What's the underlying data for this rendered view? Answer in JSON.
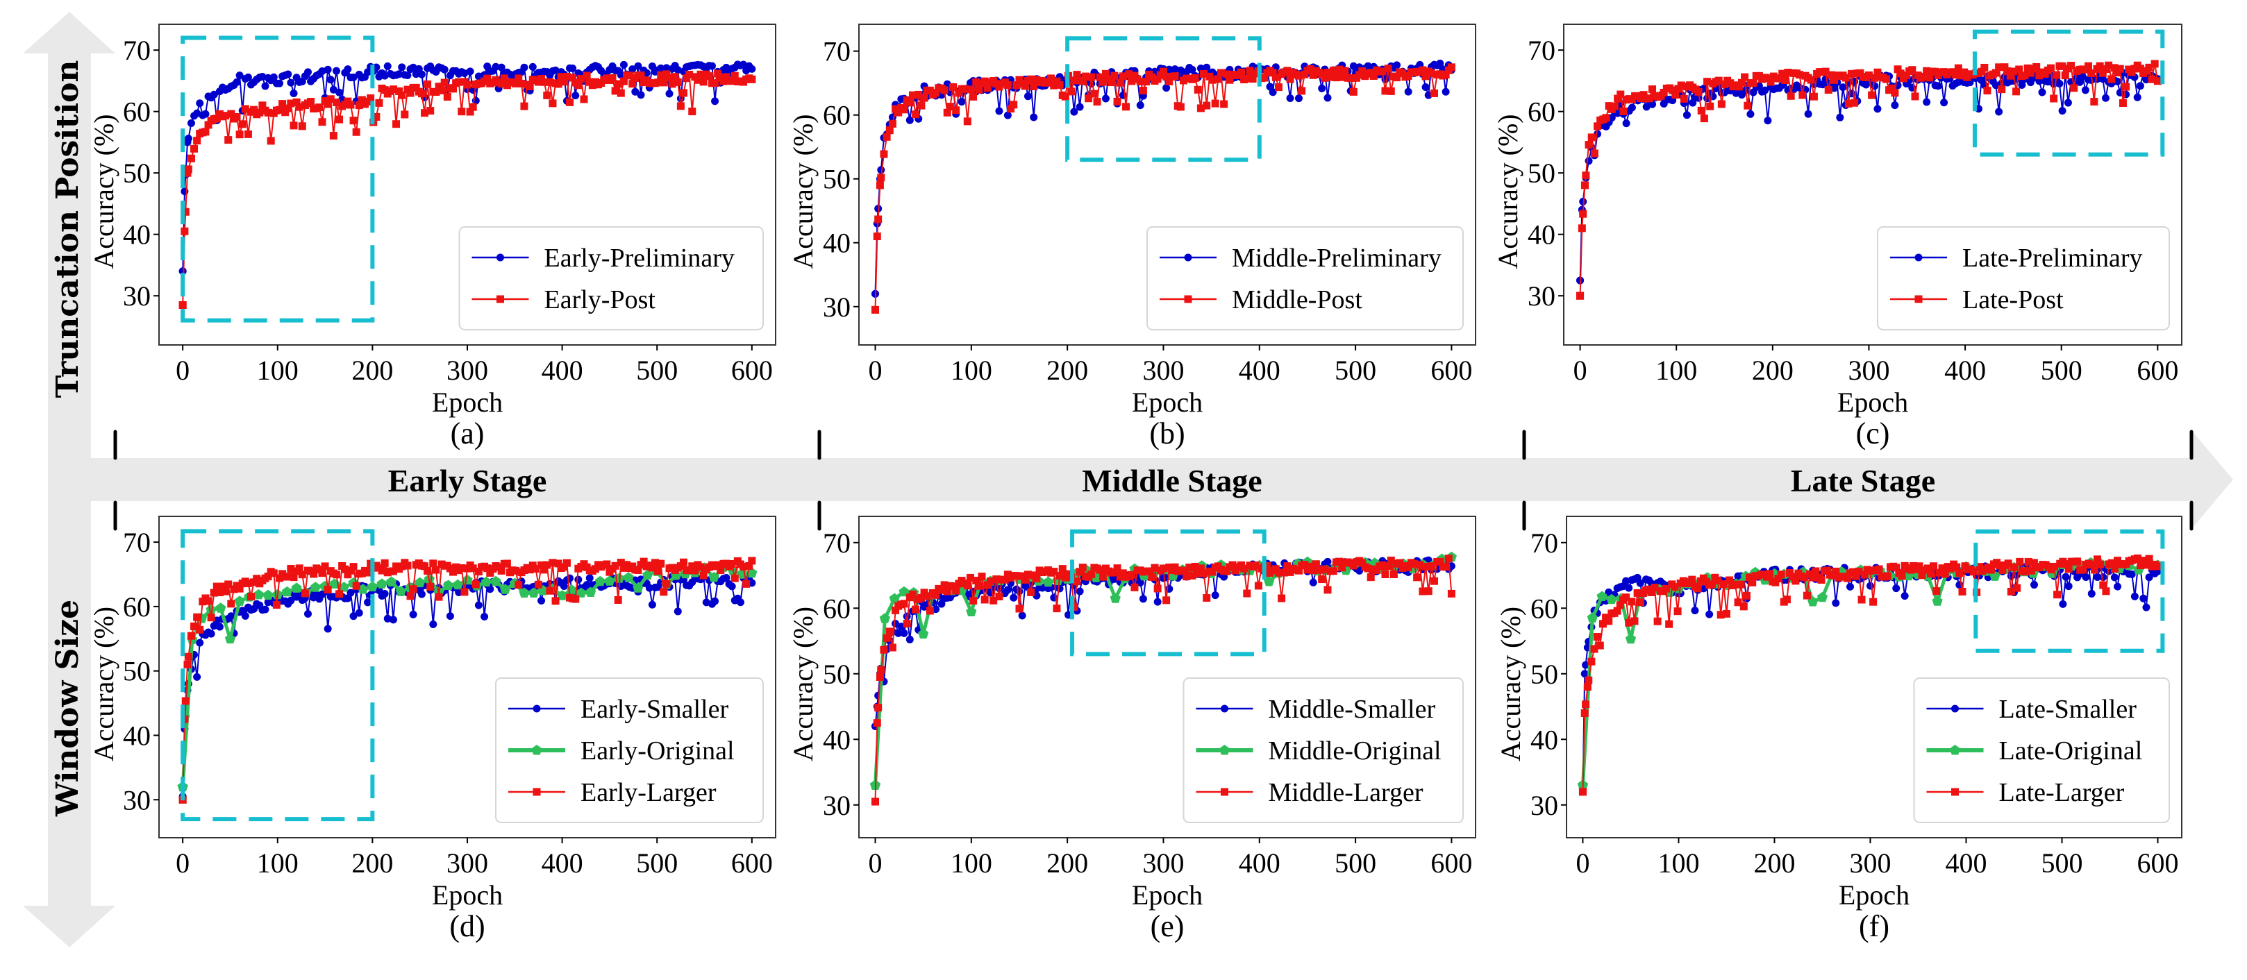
{
  "figure": {
    "row_axis_labels": {
      "top": "Truncation Position",
      "bottom": "Window Size"
    },
    "stage_labels": [
      "Early Stage",
      "Middle Stage",
      "Late Stage"
    ],
    "colors": {
      "arrow": "#e9e9e9",
      "highlight_box": "#17becf",
      "blue": "#0000cc",
      "red": "#ee1111",
      "green": "#2fbf5a",
      "frame": "#333333"
    }
  },
  "chart_data": [
    {
      "id": "a",
      "type": "line",
      "panel_label": "(a)",
      "xlabel": "Epoch",
      "ylabel": "Accuracy (%)",
      "xlim": [
        -25,
        625
      ],
      "ylim": [
        22,
        74.2
      ],
      "xticks": [
        0,
        100,
        200,
        300,
        400,
        500,
        600
      ],
      "yticks": [
        30,
        40,
        50,
        60,
        70
      ],
      "highlight_box": {
        "x": [
          0,
          200
        ],
        "y": [
          26,
          72
        ]
      },
      "legend": "lower-right",
      "series": [
        {
          "name": "Early-Preliminary",
          "color": "blue",
          "marker": "circle",
          "profile": "prelim_early",
          "keypoints": [
            [
              0,
              34
            ],
            [
              2,
              47
            ],
            [
              5,
              55
            ],
            [
              10,
              58
            ],
            [
              20,
              61.5
            ],
            [
              40,
              64
            ],
            [
              60,
              65
            ],
            [
              100,
              65
            ],
            [
              150,
              66
            ],
            [
              200,
              66.5
            ],
            [
              300,
              66.5
            ],
            [
              400,
              66.5
            ],
            [
              600,
              67.2
            ]
          ]
        },
        {
          "name": "Early-Post",
          "color": "red",
          "marker": "square",
          "profile": "post_early",
          "keypoints": [
            [
              0,
              28.5
            ],
            [
              2,
              40.5
            ],
            [
              5,
              50
            ],
            [
              10,
              53
            ],
            [
              20,
              56.5
            ],
            [
              40,
              59
            ],
            [
              60,
              59.8
            ],
            [
              100,
              60.5
            ],
            [
              150,
              61.2
            ],
            [
              199,
              62
            ],
            [
              200,
              57
            ],
            [
              210,
              63
            ],
            [
              300,
              64.5
            ],
            [
              400,
              65
            ],
            [
              600,
              65.5
            ]
          ]
        }
      ]
    },
    {
      "id": "b",
      "type": "line",
      "panel_label": "(b)",
      "xlabel": "Epoch",
      "ylabel": "Accuracy (%)",
      "xlim": [
        -17,
        625
      ],
      "ylim": [
        24,
        74.2
      ],
      "xticks": [
        0,
        100,
        200,
        300,
        400,
        500,
        600
      ],
      "yticks": [
        30,
        40,
        50,
        60,
        70
      ],
      "highlight_box": {
        "x": [
          200,
          400
        ],
        "y": [
          53,
          72
        ]
      },
      "legend": "lower-right",
      "series": [
        {
          "name": "Middle-Preliminary",
          "color": "blue",
          "marker": "circle",
          "profile": "prelim_mid",
          "keypoints": [
            [
              0,
              32
            ],
            [
              2,
              43
            ],
            [
              5,
              50
            ],
            [
              10,
              57
            ],
            [
              20,
              61
            ],
            [
              40,
              63.5
            ],
            [
              100,
              64.5
            ],
            [
              200,
              65.5
            ],
            [
              300,
              66.5
            ],
            [
              400,
              66.7
            ],
            [
              600,
              67.3
            ]
          ]
        },
        {
          "name": "Middle-Post",
          "color": "red",
          "marker": "square",
          "profile": "post_mid",
          "keypoints": [
            [
              0,
              29.5
            ],
            [
              2,
              41
            ],
            [
              5,
              49
            ],
            [
              10,
              55
            ],
            [
              20,
              60
            ],
            [
              40,
              63
            ],
            [
              100,
              64.5
            ],
            [
              200,
              65.5
            ],
            [
              300,
              66
            ],
            [
              400,
              66.3
            ],
            [
              600,
              66.8
            ]
          ]
        }
      ]
    },
    {
      "id": "c",
      "type": "line",
      "panel_label": "(c)",
      "xlabel": "Epoch",
      "ylabel": "Accuracy (%)",
      "xlim": [
        -17,
        625
      ],
      "ylim": [
        22,
        74.2
      ],
      "xticks": [
        0,
        100,
        200,
        300,
        400,
        500,
        600
      ],
      "yticks": [
        30,
        40,
        50,
        60,
        70
      ],
      "highlight_box": {
        "x": [
          410,
          605
        ],
        "y": [
          53,
          73
        ]
      },
      "legend": "lower-right",
      "series": [
        {
          "name": "Late-Preliminary",
          "color": "blue",
          "marker": "circle",
          "profile": "prelim_late",
          "keypoints": [
            [
              0,
              32.5
            ],
            [
              2,
              44
            ],
            [
              5,
              48
            ],
            [
              10,
              54
            ],
            [
              20,
              57
            ],
            [
              40,
              60.5
            ],
            [
              100,
              62.5
            ],
            [
              200,
              64
            ],
            [
              300,
              65
            ],
            [
              400,
              65
            ],
            [
              600,
              65.5
            ]
          ]
        },
        {
          "name": "Late-Post",
          "color": "red",
          "marker": "square",
          "profile": "post_late",
          "keypoints": [
            [
              0,
              30
            ],
            [
              2,
              41
            ],
            [
              5,
              48
            ],
            [
              10,
              56
            ],
            [
              20,
              58.5
            ],
            [
              40,
              62
            ],
            [
              100,
              63.5
            ],
            [
              200,
              65.5
            ],
            [
              300,
              66
            ],
            [
              400,
              66.3
            ],
            [
              600,
              67
            ]
          ]
        }
      ]
    },
    {
      "id": "d",
      "type": "line",
      "panel_label": "(d)",
      "xlabel": "Epoch",
      "ylabel": "Accuracy (%)",
      "xlim": [
        -25,
        625
      ],
      "ylim": [
        24.1,
        74
      ],
      "xticks": [
        0,
        100,
        200,
        300,
        400,
        500,
        600
      ],
      "yticks": [
        30,
        40,
        50,
        60,
        70
      ],
      "highlight_box": {
        "x": [
          0,
          200
        ],
        "y": [
          27,
          71.7
        ]
      },
      "legend": "lower-right",
      "series": [
        {
          "name": "Early-Smaller",
          "color": "blue",
          "marker": "circle",
          "profile": "small",
          "keypoints": [
            [
              0,
              30.5
            ],
            [
              2,
              41
            ],
            [
              5,
              47
            ],
            [
              10,
              52
            ],
            [
              20,
              55
            ],
            [
              40,
              57.5
            ],
            [
              60,
              59
            ],
            [
              100,
              61
            ],
            [
              200,
              62.5
            ],
            [
              300,
              63
            ],
            [
              400,
              63.5
            ],
            [
              600,
              64
            ]
          ]
        },
        {
          "name": "Early-Original",
          "color": "green",
          "marker": "pentagon",
          "profile": "orig",
          "keypoints": [
            [
              0,
              32
            ],
            [
              10,
              57
            ],
            [
              20,
              60
            ],
            [
              40,
              60.5
            ],
            [
              50,
              55
            ],
            [
              60,
              61.5
            ],
            [
              100,
              62.5
            ],
            [
              200,
              63.5
            ],
            [
              300,
              64
            ],
            [
              400,
              62
            ],
            [
              500,
              65
            ],
            [
              600,
              65.5
            ]
          ]
        },
        {
          "name": "Early-Larger",
          "color": "red",
          "marker": "square",
          "profile": "large",
          "keypoints": [
            [
              0,
              30
            ],
            [
              2,
              42.5
            ],
            [
              5,
              51
            ],
            [
              10,
              57
            ],
            [
              20,
              60
            ],
            [
              40,
              63
            ],
            [
              60,
              63.5
            ],
            [
              100,
              65
            ],
            [
              200,
              66
            ],
            [
              300,
              66
            ],
            [
              400,
              66
            ],
            [
              600,
              66.5
            ]
          ]
        }
      ]
    },
    {
      "id": "e",
      "type": "line",
      "panel_label": "(e)",
      "xlabel": "Epoch",
      "ylabel": "Accuracy (%)",
      "xlim": [
        -17,
        625
      ],
      "ylim": [
        25,
        74
      ],
      "xticks": [
        0,
        100,
        200,
        300,
        400,
        500,
        600
      ],
      "yticks": [
        30,
        40,
        50,
        60,
        70
      ],
      "highlight_box": {
        "x": [
          205,
          405
        ],
        "y": [
          53,
          71.7
        ]
      },
      "legend": "lower-right",
      "series": [
        {
          "name": "Middle-Smaller",
          "color": "blue",
          "marker": "circle",
          "profile": "small",
          "keypoints": [
            [
              0,
              42
            ],
            [
              2,
              45
            ],
            [
              5,
              50
            ],
            [
              10,
              54
            ],
            [
              20,
              57
            ],
            [
              40,
              60
            ],
            [
              100,
              62.5
            ],
            [
              200,
              64
            ],
            [
              300,
              65
            ],
            [
              400,
              66
            ],
            [
              600,
              66.5
            ]
          ]
        },
        {
          "name": "Middle-Original",
          "color": "green",
          "marker": "pentagon",
          "profile": "orig",
          "keypoints": [
            [
              0,
              33
            ],
            [
              10,
              58
            ],
            [
              20,
              61.5
            ],
            [
              40,
              62.5
            ],
            [
              50,
              56
            ],
            [
              60,
              62
            ],
            [
              100,
              63.5
            ],
            [
              200,
              65
            ],
            [
              300,
              65.5
            ],
            [
              400,
              66
            ],
            [
              600,
              67
            ]
          ]
        },
        {
          "name": "Middle-Larger",
          "color": "red",
          "marker": "square",
          "profile": "large",
          "keypoints": [
            [
              0,
              30.5
            ],
            [
              2,
              42.5
            ],
            [
              5,
              49.5
            ],
            [
              10,
              55
            ],
            [
              20,
              59
            ],
            [
              40,
              62
            ],
            [
              100,
              64
            ],
            [
              200,
              65.5
            ],
            [
              300,
              65.5
            ],
            [
              400,
              66
            ],
            [
              600,
              66.8
            ]
          ]
        }
      ]
    },
    {
      "id": "f",
      "type": "line",
      "panel_label": "(f)",
      "xlabel": "Epoch",
      "ylabel": "Accuracy (%)",
      "xlim": [
        -17,
        625
      ],
      "ylim": [
        25,
        74
      ],
      "xticks": [
        0,
        100,
        200,
        300,
        400,
        500,
        600
      ],
      "yticks": [
        30,
        40,
        50,
        60,
        70
      ],
      "highlight_box": {
        "x": [
          410,
          605
        ],
        "y": [
          53.5,
          71.7
        ]
      },
      "legend": "lower-right",
      "series": [
        {
          "name": "Late-Smaller",
          "color": "blue",
          "marker": "circle",
          "profile": "small",
          "keypoints": [
            [
              0,
              32.5
            ],
            [
              2,
              50
            ],
            [
              5,
              54
            ],
            [
              10,
              58.5
            ],
            [
              20,
              61
            ],
            [
              40,
              63
            ],
            [
              60,
              64
            ],
            [
              100,
              63
            ],
            [
              200,
              65
            ],
            [
              300,
              65.5
            ],
            [
              400,
              65.5
            ],
            [
              600,
              65.5
            ]
          ]
        },
        {
          "name": "Late-Original",
          "color": "green",
          "marker": "pentagon",
          "profile": "orig",
          "keypoints": [
            [
              0,
              33
            ],
            [
              10,
              58
            ],
            [
              20,
              61.5
            ],
            [
              40,
              61
            ],
            [
              50,
              56
            ],
            [
              60,
              62
            ],
            [
              100,
              63.5
            ],
            [
              200,
              65
            ],
            [
              300,
              65.5
            ],
            [
              400,
              65.5
            ],
            [
              600,
              66.5
            ]
          ]
        },
        {
          "name": "Late-Larger",
          "color": "red",
          "marker": "square",
          "profile": "large",
          "keypoints": [
            [
              0,
              32
            ],
            [
              2,
              44
            ],
            [
              5,
              48
            ],
            [
              10,
              53
            ],
            [
              20,
              57
            ],
            [
              40,
              61
            ],
            [
              100,
              63.5
            ],
            [
              200,
              64.5
            ],
            [
              300,
              65.5
            ],
            [
              400,
              66
            ],
            [
              600,
              67
            ]
          ]
        }
      ]
    }
  ]
}
